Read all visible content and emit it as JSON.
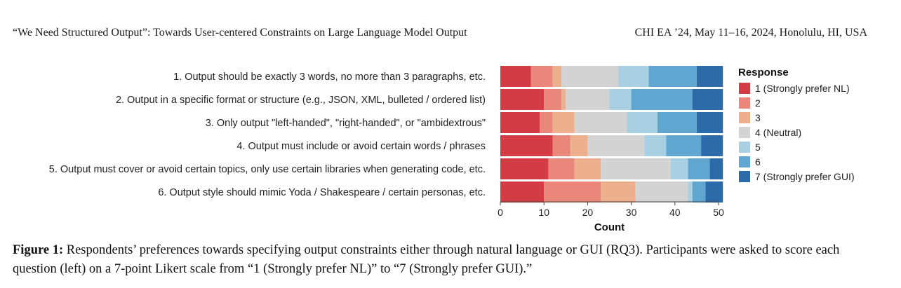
{
  "header": {
    "left": "“We Need Structured Output”: Towards User-centered Constraints on Large Language Model Output",
    "right": "CHI EA ’24, May 11–16, 2024, Honolulu, HI, USA"
  },
  "caption": {
    "label": "Figure 1:",
    "text": " Respondents’ preferences towards specifying output constraints either through natural language or GUI (RQ3). Participants were asked to score each question (left) on a 7-point Likert scale from “1 (Strongly prefer NL)” to “7 (Strongly prefer GUI).”"
  },
  "colors": {
    "r1": "#d33c45",
    "r2": "#e8877a",
    "r3": "#eeb08c",
    "r4": "#d3d3d3",
    "r5": "#a9cfe2",
    "r6": "#5fa6d0",
    "r7": "#2d6aaa"
  },
  "chart_data": {
    "type": "bar",
    "orientation": "horizontal",
    "stacked": true,
    "xlabel": "Count",
    "ylabel": "",
    "xlim": [
      0,
      50
    ],
    "xticks": [
      0,
      10,
      20,
      30,
      40,
      50
    ],
    "grid": false,
    "legend_title": "Response",
    "legend_position": "right",
    "categories": [
      "1. Output should be exactly 3 words, no more than 3 paragraphs, etc.",
      "2. Output in a specific format or structure (e.g., JSON, XML, bulleted / ordered list)",
      "3. Only output \"left-handed\", \"right-handed\", or \"ambidextrous\"",
      "4. Output must include or avoid certain words / phrases",
      "5. Output must cover or avoid certain topics, only use certain libraries when generating code, etc.",
      "6. Output style should mimic Yoda / Shakespeare / certain personas, etc."
    ],
    "series": [
      {
        "name": "1 (Strongly prefer NL)",
        "values": [
          7,
          10,
          9,
          12,
          11,
          10
        ]
      },
      {
        "name": "2",
        "values": [
          5,
          4,
          3,
          4,
          6,
          13
        ]
      },
      {
        "name": "3",
        "values": [
          2,
          1,
          5,
          4,
          6,
          8
        ]
      },
      {
        "name": "4 (Neutral)",
        "values": [
          13,
          10,
          12,
          13,
          16,
          12
        ]
      },
      {
        "name": "5",
        "values": [
          7,
          5,
          7,
          5,
          4,
          1
        ]
      },
      {
        "name": "6",
        "values": [
          11,
          14,
          9,
          8,
          5,
          3
        ]
      },
      {
        "name": "7 (Strongly prefer GUI)",
        "values": [
          6,
          7,
          6,
          5,
          3,
          4
        ]
      }
    ]
  }
}
